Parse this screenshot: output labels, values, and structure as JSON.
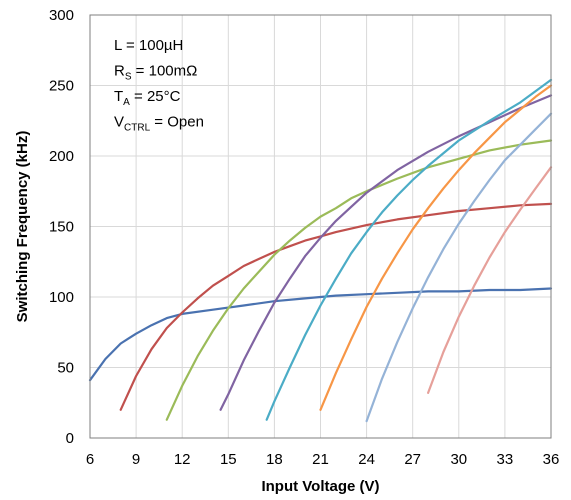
{
  "chart_data": {
    "type": "line",
    "xlabel": "Input Voltage (V)",
    "ylabel": "Switching Frequency (kHz)",
    "xlim": [
      6,
      36
    ],
    "ylim": [
      0,
      300
    ],
    "xticks": [
      6,
      9,
      12,
      15,
      18,
      21,
      24,
      27,
      30,
      33,
      36
    ],
    "yticks": [
      0,
      50,
      100,
      150,
      200,
      250,
      300
    ],
    "grid": "on",
    "annotations": [
      {
        "main": "L = 100µH",
        "sub": "",
        "rest": ""
      },
      {
        "main": "R",
        "sub": "S",
        "rest": " = 100mΩ"
      },
      {
        "main": "T",
        "sub": "A",
        "rest": " = 25°C"
      },
      {
        "main": "V",
        "sub": "CTRL",
        "rest": " = Open"
      }
    ],
    "series": [
      {
        "color": "#4a72b0",
        "points": [
          [
            6,
            41
          ],
          [
            7,
            56
          ],
          [
            8,
            67
          ],
          [
            9,
            74
          ],
          [
            10,
            80
          ],
          [
            11,
            85
          ],
          [
            12,
            88
          ],
          [
            14,
            91
          ],
          [
            16,
            94
          ],
          [
            18,
            97
          ],
          [
            20,
            99
          ],
          [
            22,
            101
          ],
          [
            24,
            102
          ],
          [
            26,
            103
          ],
          [
            28,
            104
          ],
          [
            30,
            104
          ],
          [
            32,
            105
          ],
          [
            34,
            105
          ],
          [
            36,
            106
          ]
        ]
      },
      {
        "color": "#c0504d",
        "points": [
          [
            8,
            20
          ],
          [
            9,
            44
          ],
          [
            10,
            63
          ],
          [
            11,
            78
          ],
          [
            12,
            89
          ],
          [
            13,
            99
          ],
          [
            14,
            108
          ],
          [
            15,
            115
          ],
          [
            16,
            122
          ],
          [
            17,
            127
          ],
          [
            18,
            132
          ],
          [
            19,
            136
          ],
          [
            20,
            140
          ],
          [
            21,
            143
          ],
          [
            22,
            146
          ],
          [
            24,
            151
          ],
          [
            26,
            155
          ],
          [
            28,
            158
          ],
          [
            30,
            161
          ],
          [
            32,
            163
          ],
          [
            34,
            165
          ],
          [
            36,
            166
          ]
        ]
      },
      {
        "color": "#9bbb59",
        "points": [
          [
            11,
            13
          ],
          [
            12,
            37
          ],
          [
            13,
            58
          ],
          [
            14,
            76
          ],
          [
            15,
            92
          ],
          [
            16,
            106
          ],
          [
            17,
            118
          ],
          [
            18,
            130
          ],
          [
            19,
            140
          ],
          [
            20,
            149
          ],
          [
            21,
            157
          ],
          [
            22,
            163
          ],
          [
            23,
            170
          ],
          [
            24,
            175
          ],
          [
            26,
            184
          ],
          [
            28,
            192
          ],
          [
            30,
            198
          ],
          [
            32,
            204
          ],
          [
            34,
            208
          ],
          [
            36,
            211
          ]
        ]
      },
      {
        "color": "#8064a2",
        "points": [
          [
            14.5,
            20
          ],
          [
            15,
            31
          ],
          [
            16,
            55
          ],
          [
            17,
            76
          ],
          [
            18,
            96
          ],
          [
            19,
            113
          ],
          [
            20,
            129
          ],
          [
            21,
            142
          ],
          [
            22,
            154
          ],
          [
            23,
            164
          ],
          [
            24,
            174
          ],
          [
            26,
            190
          ],
          [
            28,
            203
          ],
          [
            30,
            214
          ],
          [
            32,
            224
          ],
          [
            34,
            234
          ],
          [
            36,
            243
          ]
        ]
      },
      {
        "color": "#4bacc6",
        "points": [
          [
            17.5,
            13
          ],
          [
            18,
            26
          ],
          [
            19,
            50
          ],
          [
            20,
            73
          ],
          [
            21,
            94
          ],
          [
            22,
            113
          ],
          [
            23,
            131
          ],
          [
            24,
            146
          ],
          [
            25,
            160
          ],
          [
            26,
            172
          ],
          [
            27,
            183
          ],
          [
            28,
            193
          ],
          [
            30,
            211
          ],
          [
            32,
            225
          ],
          [
            34,
            238
          ],
          [
            36,
            254
          ]
        ]
      },
      {
        "color": "#f79646",
        "points": [
          [
            21,
            20
          ],
          [
            22,
            46
          ],
          [
            23,
            70
          ],
          [
            24,
            93
          ],
          [
            25,
            113
          ],
          [
            26,
            131
          ],
          [
            27,
            148
          ],
          [
            28,
            163
          ],
          [
            29,
            177
          ],
          [
            30,
            190
          ],
          [
            31,
            202
          ],
          [
            32,
            213
          ],
          [
            33,
            224
          ],
          [
            34,
            233
          ],
          [
            35,
            242
          ],
          [
            36,
            250
          ]
        ]
      },
      {
        "color": "#95b3d7",
        "points": [
          [
            24,
            12
          ],
          [
            25,
            42
          ],
          [
            26,
            68
          ],
          [
            27,
            92
          ],
          [
            28,
            114
          ],
          [
            29,
            134
          ],
          [
            30,
            152
          ],
          [
            31,
            168
          ],
          [
            32,
            183
          ],
          [
            33,
            197
          ],
          [
            34,
            208
          ],
          [
            35,
            219
          ],
          [
            36,
            230
          ]
        ]
      },
      {
        "color": "#e6a09a",
        "points": [
          [
            28,
            32
          ],
          [
            29,
            61
          ],
          [
            30,
            86
          ],
          [
            31,
            108
          ],
          [
            32,
            128
          ],
          [
            33,
            146
          ],
          [
            34,
            162
          ],
          [
            35,
            177
          ],
          [
            36,
            192
          ]
        ]
      }
    ]
  }
}
